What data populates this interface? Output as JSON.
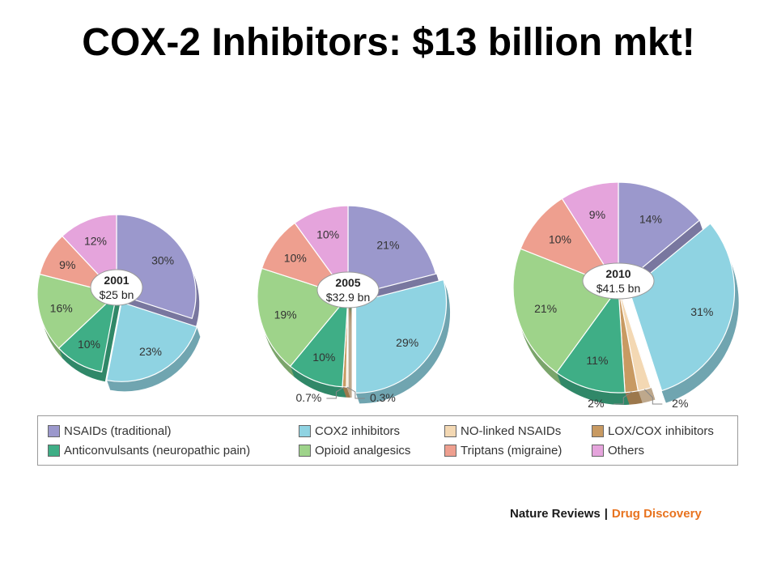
{
  "slide": {
    "title": "COX-2 Inhibitors: $13 billion mkt!"
  },
  "colors": {
    "NSAIDs (traditional)": "#9b98cc",
    "COX2 inhibitors": "#8fd3e2",
    "NO-linked NSAIDs": "#f3d8b3",
    "LOX/COX inhibitors": "#c89a62",
    "Anticonvulsants (neuropathic pain)": "#3fae86",
    "Opioid analgesics": "#9ed38a",
    "Triptans (migraine)": "#ee9f8f",
    "Others": "#e5a4dc"
  },
  "chart_data": [
    {
      "type": "pie",
      "year": "2001",
      "total": "$25 bn",
      "slices": [
        {
          "category": "NSAIDs (traditional)",
          "value": 30,
          "label": "30%"
        },
        {
          "category": "COX2 inhibitors",
          "value": 23,
          "label": "23%"
        },
        {
          "category": "Anticonvulsants (neuropathic pain)",
          "value": 10,
          "label": "10%"
        },
        {
          "category": "Opioid analgesics",
          "value": 16,
          "label": "16%"
        },
        {
          "category": "Triptans (migraine)",
          "value": 9,
          "label": "9%"
        },
        {
          "category": "Others",
          "value": 12,
          "label": "12%"
        }
      ]
    },
    {
      "type": "pie",
      "year": "2005",
      "total": "$32.9 bn",
      "slices": [
        {
          "category": "NSAIDs (traditional)",
          "value": 21,
          "label": "21%"
        },
        {
          "category": "COX2 inhibitors",
          "value": 29,
          "label": "29%"
        },
        {
          "category": "NO-linked NSAIDs",
          "value": 0.3,
          "label": "0.3%"
        },
        {
          "category": "LOX/COX inhibitors",
          "value": 0.7,
          "label": "0.7%"
        },
        {
          "category": "Anticonvulsants (neuropathic pain)",
          "value": 10,
          "label": "10%"
        },
        {
          "category": "Opioid analgesics",
          "value": 19,
          "label": "19%"
        },
        {
          "category": "Triptans (migraine)",
          "value": 10,
          "label": "10%"
        },
        {
          "category": "Others",
          "value": 10,
          "label": "10%"
        }
      ]
    },
    {
      "type": "pie",
      "year": "2010",
      "total": "$41.5 bn",
      "slices": [
        {
          "category": "NSAIDs (traditional)",
          "value": 14,
          "label": "14%"
        },
        {
          "category": "COX2 inhibitors",
          "value": 31,
          "label": "31%"
        },
        {
          "category": "NO-linked NSAIDs",
          "value": 2,
          "label": "2%"
        },
        {
          "category": "LOX/COX inhibitors",
          "value": 2,
          "label": "2%"
        },
        {
          "category": "Anticonvulsants (neuropathic pain)",
          "value": 11,
          "label": "11%"
        },
        {
          "category": "Opioid analgesics",
          "value": 21,
          "label": "21%"
        },
        {
          "category": "Triptans (migraine)",
          "value": 10,
          "label": "10%"
        },
        {
          "category": "Others",
          "value": 9,
          "label": "9%"
        }
      ]
    }
  ],
  "legend": [
    "NSAIDs (traditional)",
    "COX2 inhibitors",
    "NO-linked NSAIDs",
    "LOX/COX inhibitors",
    "Anticonvulsants (neuropathic pain)",
    "Opioid analgesics",
    "Triptans (migraine)",
    "Others"
  ],
  "credit": {
    "journal": "Nature Reviews",
    "separator": "|",
    "section": "Drug Discovery"
  }
}
